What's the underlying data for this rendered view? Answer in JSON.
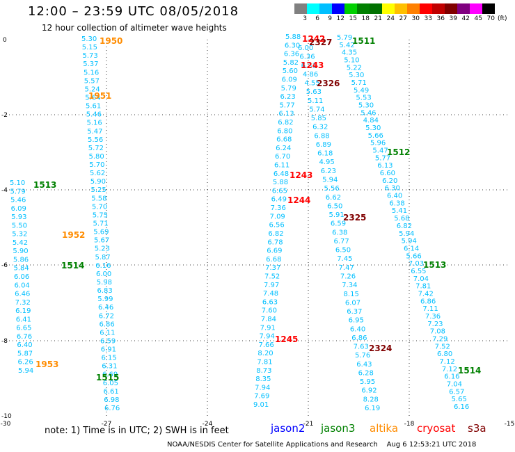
{
  "header": {
    "title": "12:00  –  23:59  UTC  08/05/2018",
    "subtitle": "12 hour collection of altimeter wave heights"
  },
  "colorbar": {
    "colors": [
      "#808080",
      "#00ffff",
      "#00bfff",
      "#0000ff",
      "#00d000",
      "#008000",
      "#007000",
      "#ffff00",
      "#ffc000",
      "#ff8000",
      "#ff0000",
      "#c00000",
      "#800000",
      "#800080",
      "#ff00ff",
      "#000000"
    ],
    "labels": [
      "3",
      "6",
      "9",
      "12",
      "15",
      "18",
      "21",
      "24",
      "27",
      "30",
      "33",
      "36",
      "39",
      "42",
      "45",
      "70",
      "(ft)"
    ]
  },
  "axes": {
    "x_ticks": [
      "-30",
      "-27",
      "-24",
      "-21",
      "-18",
      "-15"
    ],
    "y_ticks": [
      "0",
      "-2",
      "-4",
      "-6",
      "-8",
      "-10"
    ]
  },
  "tracks": [
    {
      "start": [
        117,
        59
      ],
      "end": [
        150,
        590
      ],
      "color": "#00bfff",
      "values": [
        "5.30",
        "5.15",
        "5.73",
        "5.37",
        "5.16",
        "5.57",
        "5.24",
        "5.64",
        "5.61",
        "5.46",
        "5.16",
        "5.47",
        "5.56",
        "5.72",
        "5.80",
        "5.70",
        "5.62",
        "5.90",
        "5.25",
        "5.58",
        "5.70",
        "5.75",
        "5.71",
        "5.69",
        "5.67",
        "5.23",
        "5.87",
        "6.16",
        "6.00",
        "5.98",
        "6.83",
        "5.99",
        "6.46",
        "6.72",
        "6.86",
        "6.11",
        "6.59",
        "6.91",
        "6.15",
        "6.31",
        "6.69",
        "6.05",
        "6.61",
        "6.98",
        "6.76"
      ]
    },
    {
      "start": [
        14,
        266
      ],
      "end": [
        26,
        536
      ],
      "color": "#00bfff",
      "values": [
        "5.10",
        "5.79",
        "5.46",
        "6.09",
        "5.93",
        "5.50",
        "5.32",
        "5.42",
        "5.90",
        "5.86",
        "5.84",
        "6.06",
        "6.04",
        "6.46",
        "7.32",
        "6.19",
        "6.41",
        "6.65",
        "6.76",
        "6.40",
        "5.87",
        "6.26",
        "5.94"
      ]
    },
    {
      "start": [
        410,
        56
      ],
      "end": [
        364,
        585
      ],
      "color": "#00bfff",
      "values": [
        "5.88",
        "6.30",
        "6.36",
        "5.82",
        "5.60",
        "6.09",
        "5.79",
        "6.23",
        "5.77",
        "6.13",
        "6.82",
        "6.80",
        "6.68",
        "6.24",
        "6.70",
        "6.11",
        "6.48",
        "5.88",
        "6.65",
        "6.49",
        "7.36",
        "7.09",
        "6.56",
        "6.82",
        "6.78",
        "6.69",
        "6.68",
        "7.37",
        "7.52",
        "7.97",
        "7.48",
        "6.63",
        "7.60",
        "7.84",
        "7.91",
        "7.94",
        "7.66",
        "8.20",
        "7.81",
        "8.73",
        "8.35",
        "7.94",
        "7.69",
        "9.01"
      ]
    },
    {
      "start": [
        428,
        72
      ],
      "end": [
        524,
        590
      ],
      "color": "#00bfff",
      "values": [
        "6.00",
        "6.36",
        "6.31",
        "4.86",
        "4.55",
        "5.63",
        "5.11",
        "5.74",
        "5.85",
        "6.32",
        "6.88",
        "6.89",
        "6.18",
        "4.95",
        "6.23",
        "5.94",
        "5.56",
        "6.62",
        "6.50",
        "5.91",
        "6.59",
        "6.38",
        "6.77",
        "6.50",
        "7.45",
        "7.47",
        "7.26",
        "7.34",
        "8.15",
        "6.07",
        "6.37",
        "6.95",
        "6.40",
        "6.86",
        "7.63",
        "5.76",
        "6.43",
        "6.28",
        "5.95",
        "6.92",
        "8.28",
        "6.19"
      ]
    },
    {
      "start": [
        484,
        57
      ],
      "end": [
        652,
        588
      ],
      "color": "#00bfff",
      "values": [
        "5.79",
        "5.42",
        "4.35",
        "5.10",
        "5.22",
        "5.30",
        "5.71",
        "5.49",
        "5.53",
        "5.30",
        "5.46",
        "4.84",
        "5.30",
        "5.66",
        "5.96",
        "5.47",
        "5.77",
        "6.13",
        "6.60",
        "6.20",
        "6.30",
        "6.40",
        "6.38",
        "5.41",
        "5.68",
        "6.82",
        "5.94",
        "5.94",
        "6.14",
        "5.66",
        "7.03",
        "6.55",
        "7.04",
        "7.81",
        "7.42",
        "6.86",
        "7.11",
        "7.36",
        "7.23",
        "7.08",
        "7.29",
        "7.52",
        "6.80",
        "7.12",
        "7.12",
        "6.16",
        "7.04",
        "6.57",
        "5.65",
        "6.16"
      ]
    }
  ],
  "time_labels": [
    {
      "text": "1950",
      "color": "#ff8c00",
      "pos": [
        143,
        59
      ]
    },
    {
      "text": "1951",
      "color": "#ff8c00",
      "pos": [
        127,
        138
      ]
    },
    {
      "text": "1513",
      "color": "#008000",
      "pos": [
        48,
        266
      ]
    },
    {
      "text": "1952",
      "color": "#ff8c00",
      "pos": [
        89,
        338
      ]
    },
    {
      "text": "1514",
      "color": "#008000",
      "pos": [
        88,
        382
      ]
    },
    {
      "text": "1953",
      "color": "#ff8c00",
      "pos": [
        51,
        524
      ]
    },
    {
      "text": "1515",
      "color": "#008000",
      "pos": [
        138,
        543
      ]
    },
    {
      "text": "1242",
      "color": "#ff0000",
      "pos": [
        434,
        56
      ]
    },
    {
      "text": "2327",
      "color": "#800000",
      "pos": [
        444,
        61
      ]
    },
    {
      "text": "1511",
      "color": "#008000",
      "pos": [
        506,
        59
      ]
    },
    {
      "text": "1243",
      "color": "#ff0000",
      "pos": [
        432,
        94
      ]
    },
    {
      "text": "2326",
      "color": "#800000",
      "pos": [
        455,
        120
      ]
    },
    {
      "text": "1512",
      "color": "#008000",
      "pos": [
        556,
        219
      ]
    },
    {
      "text": "1243",
      "color": "#ff0000",
      "pos": [
        416,
        252
      ]
    },
    {
      "text": "1244",
      "color": "#ff0000",
      "pos": [
        413,
        288
      ]
    },
    {
      "text": "2325",
      "color": "#800000",
      "pos": [
        493,
        313
      ]
    },
    {
      "text": "1513",
      "color": "#008000",
      "pos": [
        608,
        381
      ]
    },
    {
      "text": "1245",
      "color": "#ff0000",
      "pos": [
        395,
        488
      ]
    },
    {
      "text": "2324",
      "color": "#800000",
      "pos": [
        530,
        501
      ]
    },
    {
      "text": "1514",
      "color": "#008000",
      "pos": [
        658,
        533
      ]
    }
  ],
  "legend": {
    "note": "note:  1) Time is in UTC;  2) SWH is in feet",
    "satellites": [
      {
        "name": "jason2",
        "color": "#0000ff"
      },
      {
        "name": "jason3",
        "color": "#008000"
      },
      {
        "name": "altika",
        "color": "#ff8c00"
      },
      {
        "name": "cryosat",
        "color": "#ff0000"
      },
      {
        "name": "s3a",
        "color": "#800000"
      }
    ]
  },
  "footer": {
    "credit": "NOAA/NESDIS Center for Satellite Applications and Research",
    "timestamp": "Aug  6 12:53:21 UTC 2018"
  }
}
